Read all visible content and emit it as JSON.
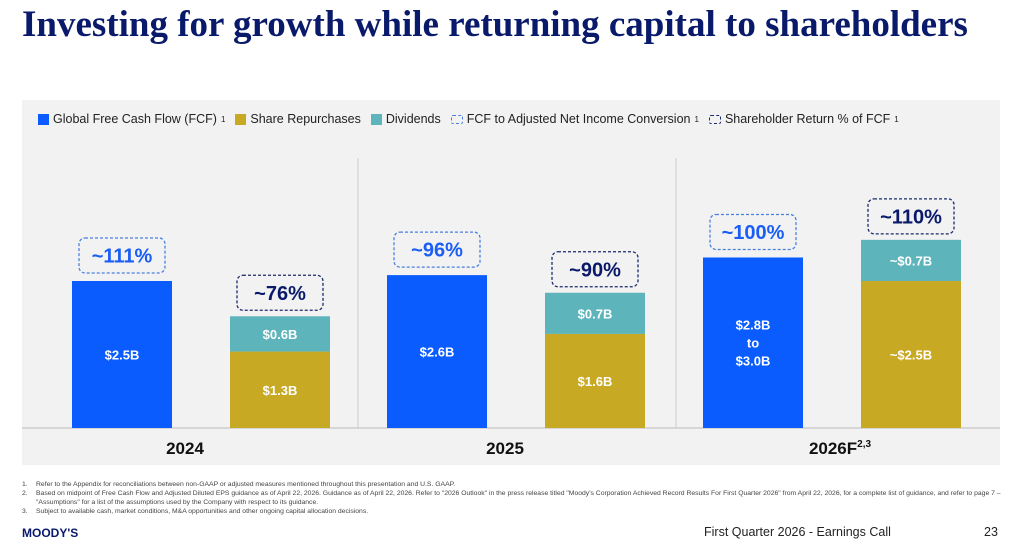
{
  "title": "Investing for growth while returning capital to shareholders",
  "legend": [
    {
      "label": "Global Free Cash Flow (FCF)",
      "sup": "1",
      "color": "#0a5cff",
      "style": "solid"
    },
    {
      "label": "Share Repurchases",
      "sup": "",
      "color": "#c8a923",
      "style": "solid"
    },
    {
      "label": "Dividends",
      "sup": "",
      "color": "#5db5bb",
      "style": "solid"
    },
    {
      "label": "FCF to Adjusted Net Income Conversion",
      "sup": "1",
      "color": "#4a7fe0",
      "style": "dashed"
    },
    {
      "label": "Shareholder Return % of FCF",
      "sup": "1",
      "color": "#1b2a6b",
      "style": "dashed"
    }
  ],
  "chart_data": {
    "type": "bar",
    "categories": [
      "2024",
      "2025",
      "2026F"
    ],
    "category_sups": [
      "",
      "",
      "2,3"
    ],
    "series": [
      {
        "name": "Global Free Cash Flow (FCF)",
        "values": [
          2.5,
          2.6,
          2.9
        ],
        "labels": [
          "$2.5B",
          "$2.6B",
          "$2.8B to $3.0B"
        ],
        "color": "#0a5cff",
        "stack": "fcf"
      },
      {
        "name": "Share Repurchases",
        "values": [
          1.3,
          1.6,
          2.5
        ],
        "labels": [
          "$1.3B",
          "$1.6B",
          "~$2.5B"
        ],
        "color": "#c8a923",
        "stack": "return"
      },
      {
        "name": "Dividends",
        "values": [
          0.6,
          0.7,
          0.7
        ],
        "labels": [
          "$0.6B",
          "$0.7B",
          "~$0.7B"
        ],
        "color": "#5db5bb",
        "stack": "return"
      }
    ],
    "annotations": {
      "fcf_conversion": [
        "~111%",
        "~96%",
        "~100%"
      ],
      "shareholder_return_pct": [
        "~76%",
        "~90%",
        "~110%"
      ]
    },
    "unit": "$B"
  },
  "footnotes": [
    {
      "n": "1.",
      "text": "Refer to the Appendix for reconciliations between non-GAAP or adjusted measures mentioned throughout this presentation and U.S. GAAP."
    },
    {
      "n": "2.",
      "text": "Based on midpoint of Free Cash Flow and Adjusted Diluted EPS guidance as of April 22, 2026. Guidance as of April 22, 2026. Refer to \"2026 Outlook\" in the press release titled \"Moody's Corporation Achieved Record Results For First Quarter 2026\" from April 22, 2026, for a complete list of guidance, and refer to page 7 – \"Assumptions\" for a list of the assumptions used by the Company with respect to its guidance."
    },
    {
      "n": "3.",
      "text": "Subject to available cash, market conditions, M&A opportunities and other ongoing capital allocation decisions."
    }
  ],
  "footer": {
    "logo": "MOODY'S",
    "event": "First Quarter 2026 - Earnings Call",
    "page": "23"
  }
}
